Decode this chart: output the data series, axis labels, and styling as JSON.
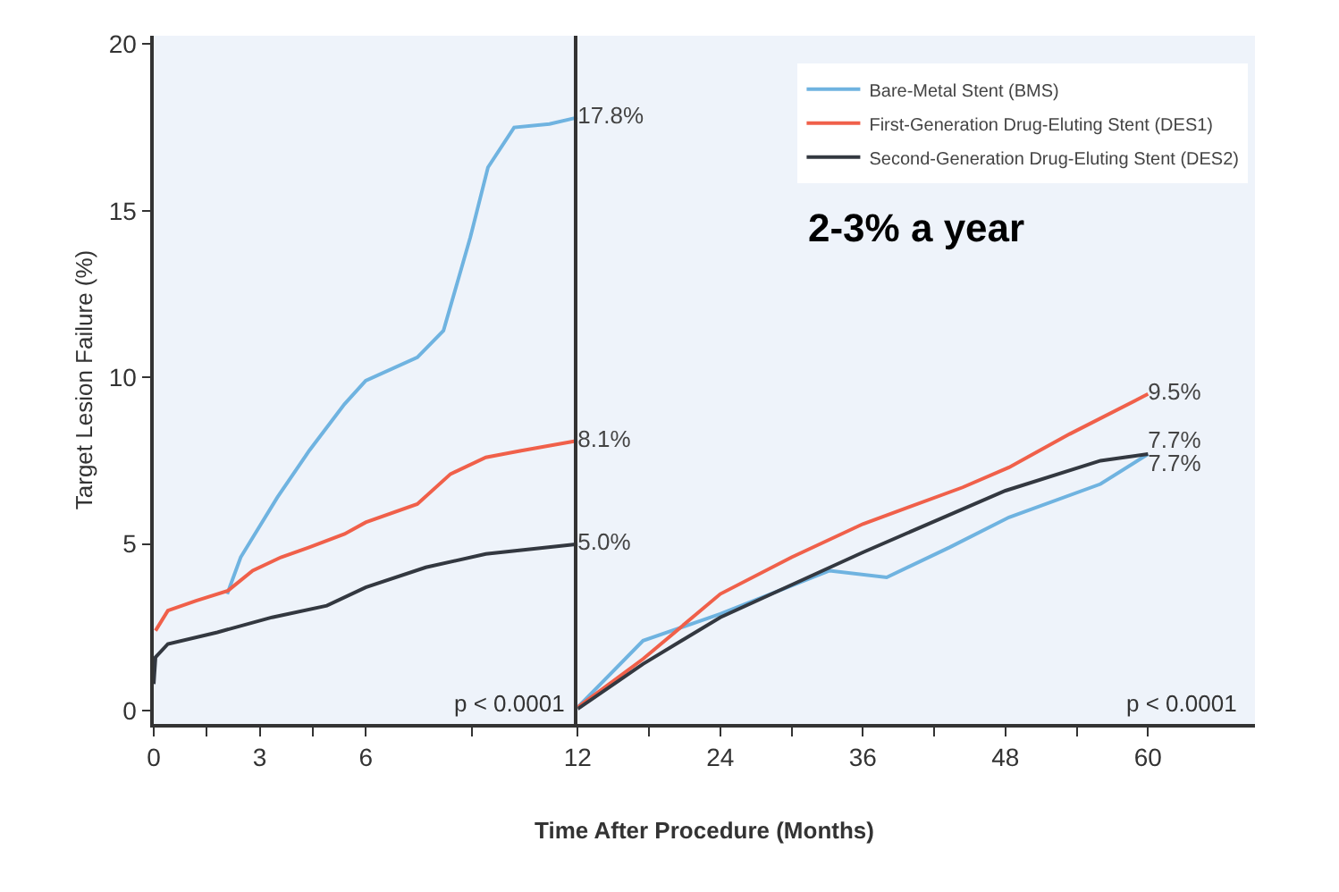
{
  "chart_data": [
    {
      "type": "line",
      "xlabel": "Time After Procedure (Months)",
      "ylabel": "Target Lesion Failure (%)",
      "xlim": [
        0,
        12
      ],
      "ylim": [
        -0.4,
        20.25
      ],
      "xticks": [
        0,
        {
          "value": 1.5,
          "label": null
        },
        3,
        {
          "value": 4.5,
          "label": null
        },
        6,
        {
          "value": 9,
          "label": null
        },
        12
      ],
      "yticks": [
        0,
        5,
        10,
        15,
        20
      ],
      "grid": false,
      "legend": false,
      "marker": "none",
      "line_style": "solid",
      "series": [
        {
          "color": "#6fb3e0",
          "x": [
            2.08,
            2.46,
            3.5,
            4.4,
            5.4,
            6,
            7.46,
            8.2,
            8.96,
            9.46,
            10.2,
            11.2,
            12
          ],
          "values": [
            3.5,
            4.6,
            6.4,
            7.8,
            9.2,
            9.9,
            10.6,
            11.4,
            14.2,
            16.3,
            17.5,
            17.6,
            17.8
          ],
          "value_labels": [
            null,
            null,
            null,
            null,
            null,
            null,
            null,
            null,
            null,
            null,
            null,
            null,
            "17.8%"
          ]
        },
        {
          "color": "#f0604a",
          "x": [
            0.05,
            0.4,
            1.2,
            2.1,
            2.8,
            3.6,
            4.4,
            5.4,
            6,
            7.46,
            8.4,
            9.4,
            10.4,
            12
          ],
          "values": [
            2.4,
            3.0,
            3.3,
            3.6,
            4.2,
            4.6,
            4.9,
            5.3,
            5.65,
            6.2,
            7.1,
            7.6,
            7.8,
            8.1
          ],
          "value_labels": [
            null,
            null,
            null,
            null,
            null,
            null,
            null,
            null,
            null,
            null,
            null,
            null,
            null,
            "8.1%"
          ]
        },
        {
          "color": "#333840",
          "x": [
            0,
            0.05,
            0.4,
            1.8,
            3.35,
            4.9,
            6,
            7.7,
            9.4,
            12
          ],
          "values": [
            0.8,
            1.6,
            2.0,
            2.35,
            2.8,
            3.15,
            3.7,
            4.3,
            4.7,
            5.0
          ],
          "value_labels": [
            null,
            null,
            null,
            null,
            null,
            null,
            null,
            null,
            null,
            "5.0%"
          ]
        }
      ],
      "annotations": [
        "p < 0.0001"
      ]
    },
    {
      "type": "line",
      "xlim": [
        12,
        69
      ],
      "ylim": [
        -0.4,
        20.25
      ],
      "xticks": [
        {
          "value": 12,
          "label": null
        },
        {
          "value": 18,
          "label": null
        },
        24,
        {
          "value": 30,
          "label": null
        },
        36,
        {
          "value": 42,
          "label": null
        },
        48,
        {
          "value": 54,
          "label": null
        },
        60
      ],
      "yticks": [
        0,
        5,
        10,
        15,
        20
      ],
      "tick_labels": "x",
      "grid": false,
      "legend": "top right",
      "marker": "none",
      "line_style": "solid",
      "series": [
        {
          "name": "Bare-Metal Stent (BMS)",
          "color": "#6fb3e0",
          "x": [
            12,
            17.5,
            24,
            33.2,
            38,
            43.3,
            48.3,
            56,
            60
          ],
          "values": [
            0.1,
            2.1,
            2.9,
            4.2,
            4.0,
            4.9,
            5.8,
            6.8,
            7.7
          ],
          "value_labels": [
            null,
            null,
            null,
            null,
            null,
            null,
            null,
            null,
            "7.7%"
          ]
        },
        {
          "name": "First-Generation Drug-Eluting Stent (DES1)",
          "color": "#f0604a",
          "x": [
            12,
            17.5,
            24,
            30,
            36,
            44.4,
            48.3,
            53.4,
            60
          ],
          "values": [
            0.1,
            1.55,
            3.5,
            4.6,
            5.6,
            6.7,
            7.3,
            8.3,
            9.5
          ],
          "value_labels": [
            null,
            null,
            null,
            null,
            null,
            null,
            null,
            null,
            "9.5%"
          ]
        },
        {
          "name": "Second-Generation Drug-Eluting Stent (DES2)",
          "color": "#333840",
          "x": [
            12,
            17.5,
            24,
            36,
            48,
            56,
            60
          ],
          "values": [
            0.05,
            1.4,
            2.8,
            4.75,
            6.6,
            7.5,
            7.7
          ],
          "value_labels": [
            null,
            null,
            null,
            null,
            null,
            null,
            "7.7%"
          ]
        }
      ],
      "annotations": [
        "p < 0.0001",
        "2-3% a year"
      ]
    }
  ]
}
